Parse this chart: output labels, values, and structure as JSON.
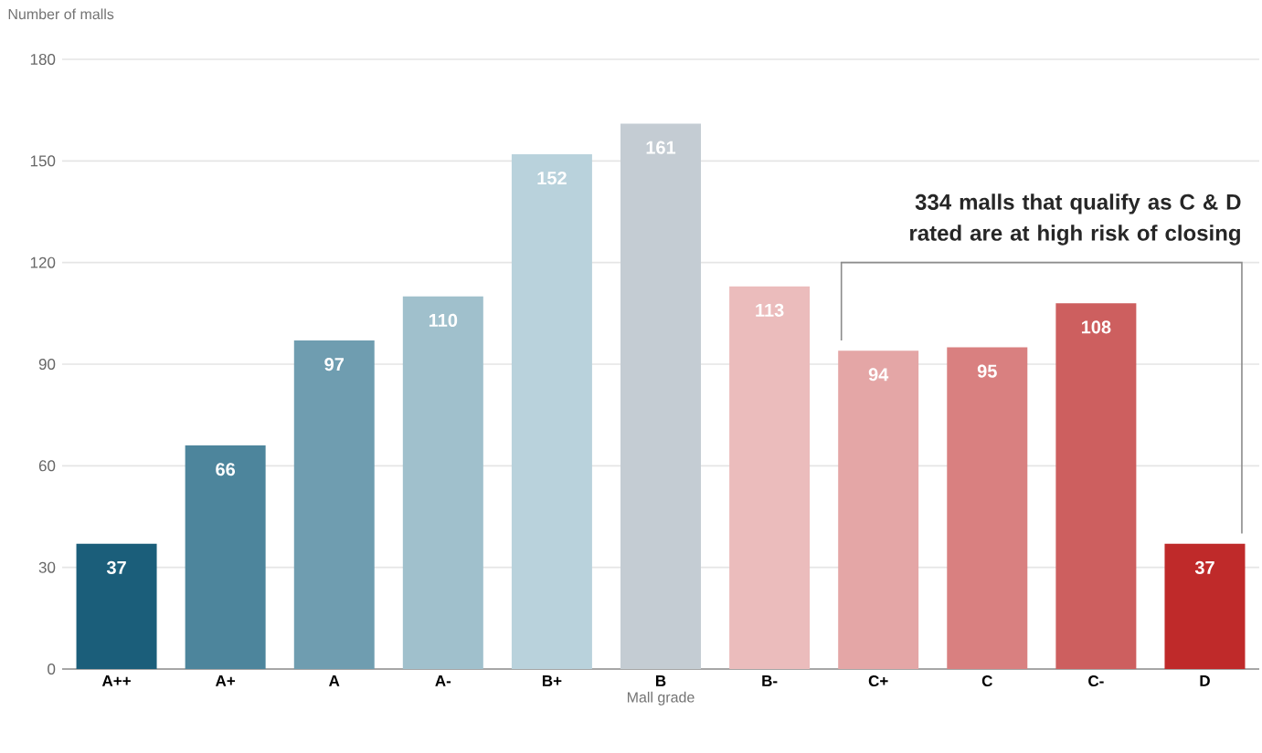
{
  "chart_data": {
    "type": "bar",
    "xlabel": "Mall grade",
    "ylabel": "Number of malls",
    "categories": [
      "A++",
      "A+",
      "A",
      "A-",
      "B+",
      "B",
      "B-",
      "C+",
      "C",
      "C-",
      "D"
    ],
    "values": [
      37,
      66,
      97,
      110,
      152,
      161,
      113,
      94,
      95,
      108,
      37
    ],
    "colors": [
      "#1b5e7a",
      "#4d859c",
      "#6f9db0",
      "#a0c0cc",
      "#b9d2dc",
      "#c4ccd3",
      "#ebbcbc",
      "#e4a6a6",
      "#d98080",
      "#cd5f5f",
      "#bf2a2a"
    ],
    "data_labels": true,
    "ylim": [
      0,
      180
    ],
    "yticks": [
      0,
      30,
      60,
      90,
      120,
      150,
      180
    ],
    "grid": "y",
    "annotations": [
      {
        "text": "334 malls that qualify as C & D rated are at high risk of closing"
      }
    ]
  }
}
